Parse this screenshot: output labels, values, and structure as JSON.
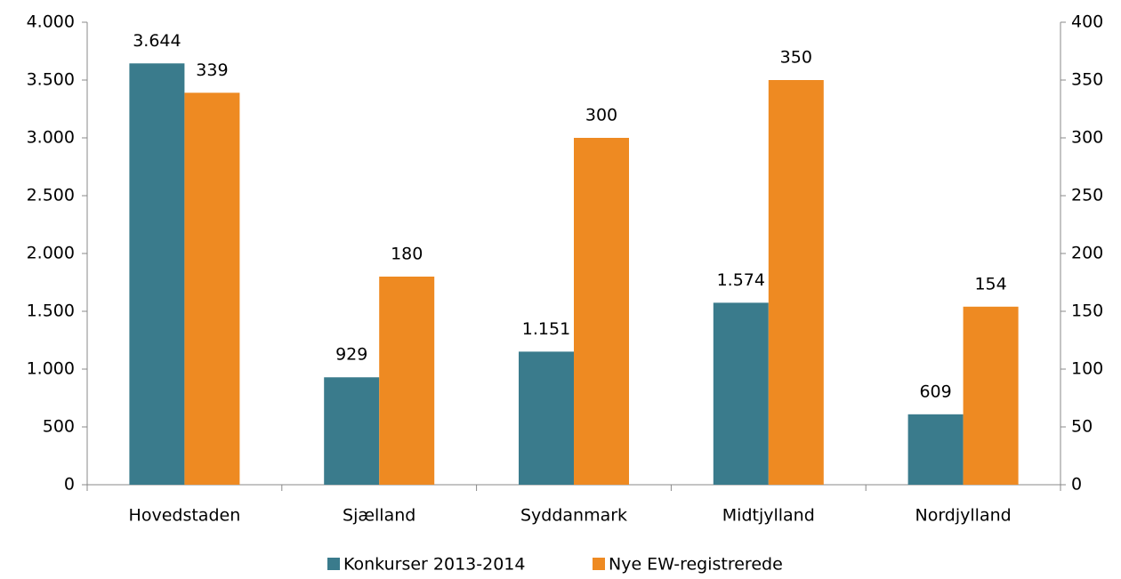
{
  "chart_data": {
    "type": "bar",
    "categories": [
      "Hovedstaden",
      "Sjælland",
      "Syddanmark",
      "Midtjylland",
      "Nordjylland"
    ],
    "series": [
      {
        "name": "Konkurser 2013-2014",
        "color": "#3a7b8c",
        "values": [
          3644,
          929,
          1151,
          1574,
          609
        ],
        "value_labels": [
          "3.644",
          "929",
          "1.151",
          "1.574",
          "609"
        ]
      },
      {
        "name": "Nye EW-registrerede",
        "color": "#ee8a22",
        "values": [
          339,
          180,
          300,
          350,
          154
        ],
        "axis": "y2"
      }
    ],
    "ylim": [
      0,
      4000
    ],
    "yticks": [
      0,
      500,
      {
        "value": 1000,
        "label": "1.000"
      },
      {
        "value": 1500,
        "label": "1.500"
      },
      {
        "value": 2000,
        "label": "2.000"
      },
      {
        "value": 2500,
        "label": "2.500"
      },
      {
        "value": 3000,
        "label": "3.000"
      },
      {
        "value": 3500,
        "label": "3.500"
      },
      {
        "value": 4000,
        "label": "4.000"
      }
    ],
    "y2lim": [
      0,
      400
    ],
    "y2ticks": [
      0,
      50,
      100,
      150,
      200,
      250,
      300,
      350,
      400
    ],
    "legend": "bottom"
  }
}
